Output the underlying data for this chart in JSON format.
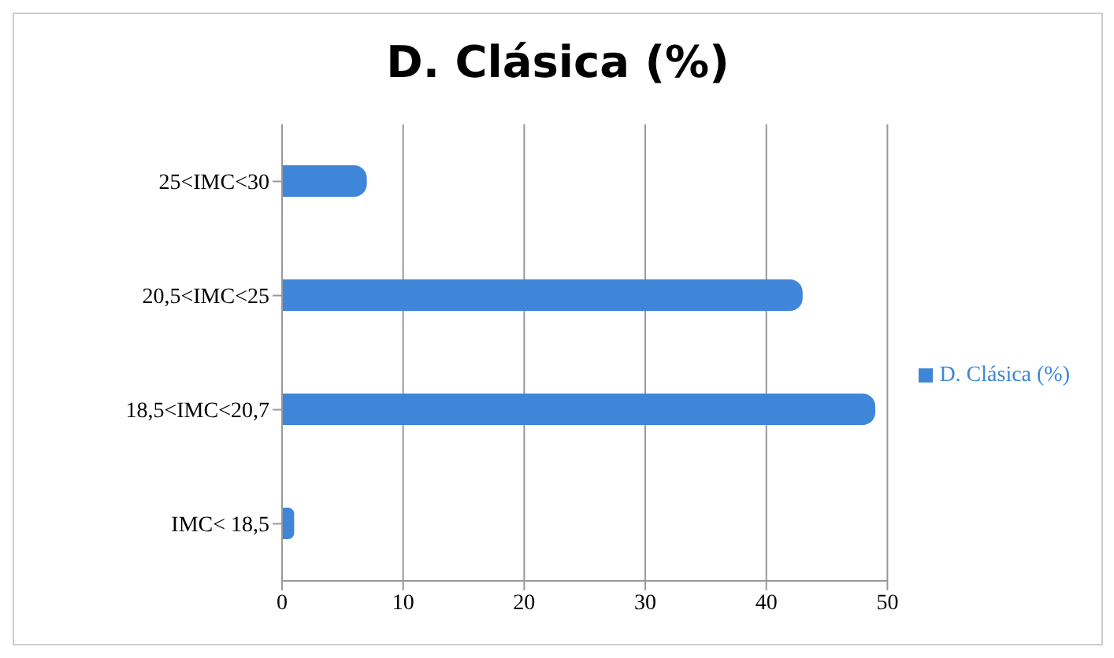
{
  "chart_data": {
    "type": "bar",
    "orientation": "horizontal",
    "title": "D. Clásica (%)",
    "categories": [
      "25<IMC<30",
      "20,5<IMC<25",
      "18,5<IMC<20,7",
      "IMC< 18,5"
    ],
    "series": [
      {
        "name": "D. Clásica (%)",
        "color": "#3f86d8",
        "values": [
          7,
          43,
          49,
          1
        ]
      }
    ],
    "xlim": [
      0,
      50
    ],
    "xticks": [
      0,
      10,
      20,
      30,
      40,
      50
    ],
    "grid": "x",
    "legend": "right"
  }
}
